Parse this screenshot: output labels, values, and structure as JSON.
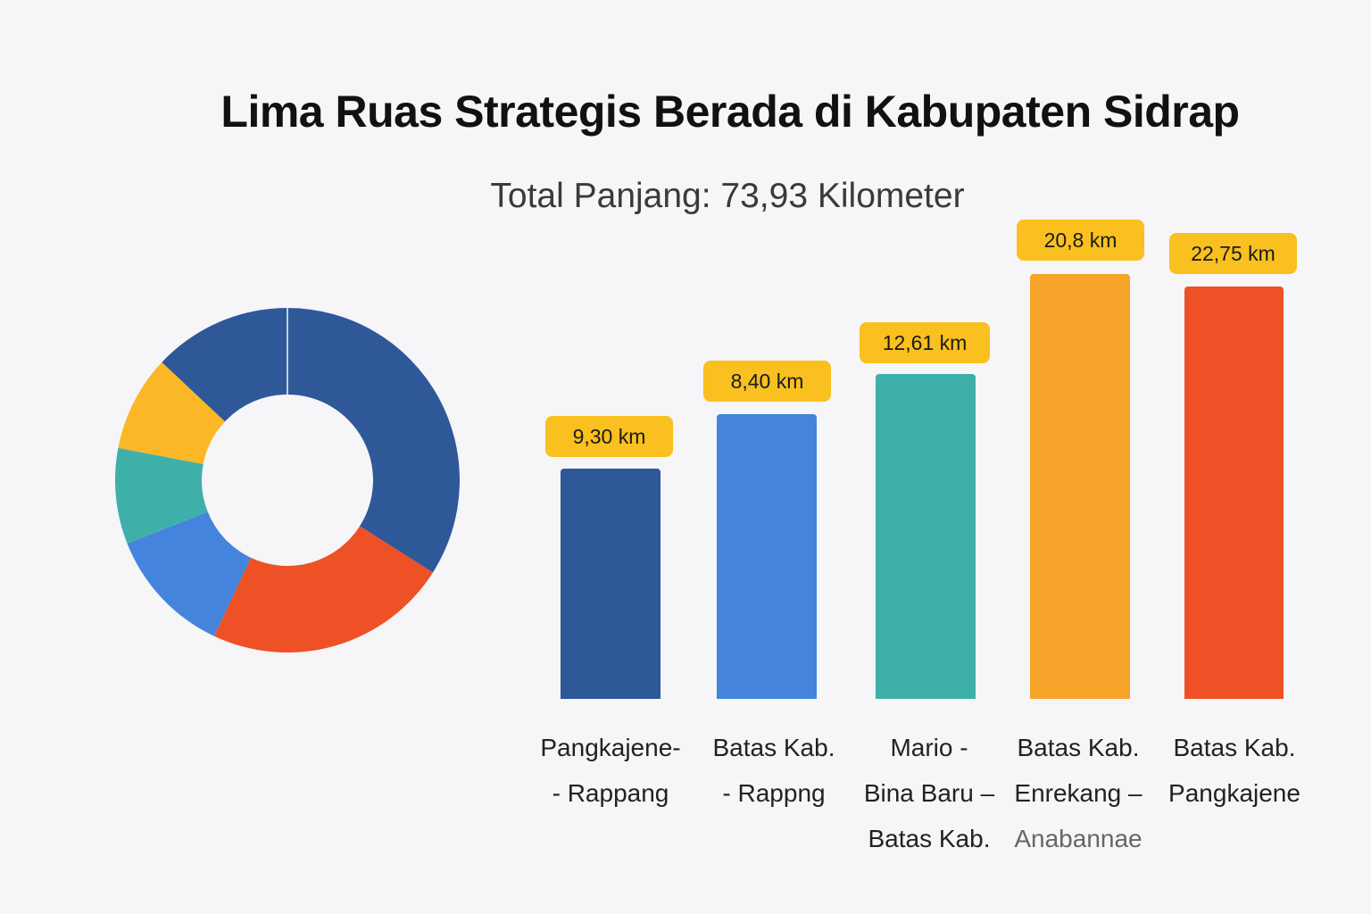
{
  "header": {
    "title": "Lima Ruas Strategis Berada di Kabupaten Sidrap",
    "subtitle": "Total Panjang: 73,93 Kilometer"
  },
  "colors": {
    "dark_blue": "#2f5899",
    "blue": "#4484dc",
    "teal": "#3fb0a9",
    "orange": "#f7a42a",
    "red_orange": "#ee5126",
    "yellow": "#fbb726",
    "badge": "#f9c01f",
    "background": "#f6f5f7"
  },
  "bars": [
    {
      "value_label": "9,30 km",
      "label_lines": [
        "Pangkajene-",
        "- Rappang"
      ],
      "color": "#2f5899"
    },
    {
      "value_label": "8,40 km",
      "label_lines": [
        "Batas Kab.",
        "- Rappng"
      ],
      "color": "#4484dc"
    },
    {
      "value_label": "12,61 km",
      "label_lines": [
        "Mario -",
        "Bina Baru –",
        "Batas Kab."
      ],
      "color": "#3fb0a9"
    },
    {
      "value_label": "20,8 km",
      "label_lines": [
        "Batas Kab.",
        "Enrekang –",
        "Anabannae"
      ],
      "color": "#f7a42a"
    },
    {
      "value_label": "22,75 km",
      "label_lines": [
        "Batas Kab.",
        "Pangkajene"
      ],
      "color": "#ee5126"
    }
  ],
  "chart_data": [
    {
      "type": "pie",
      "subtype": "donut",
      "title": "",
      "labels": [
        "Segment 1 (dark blue)",
        "Segment 2 (orange-red)",
        "Segment 3 (blue)",
        "Segment 4 (teal)",
        "Segment 5 (yellow)",
        "Segment 6 (dark blue)"
      ],
      "values_percent": [
        34,
        23,
        12,
        9,
        9,
        13
      ],
      "colors": [
        "#2f5899",
        "#ee5126",
        "#4484dc",
        "#3fb0a9",
        "#fbb726",
        "#2f5899"
      ],
      "start_angle_deg": 0,
      "direction": "clockwise",
      "legend": "none"
    },
    {
      "type": "bar",
      "title": "Lima Ruas Strategis Berada di Kabupaten Sidrap",
      "subtitle": "Total Panjang: 73,93 Kilometer",
      "categories": [
        "Pangkajene- - Rappang",
        "Batas Kab. - Rappng",
        "Mario - Bina Baru – Batas Kab.",
        "Batas Kab. Enrekang – Anabannae",
        "Batas Kab. Pangkajene"
      ],
      "values": [
        9.3,
        8.4,
        12.61,
        20.8,
        22.75
      ],
      "data_labels": [
        "9,30 km",
        "8,40 km",
        "12,61 km",
        "20,8 km",
        "22,75 km"
      ],
      "unit": "km",
      "xlabel": "",
      "ylabel": "",
      "grid": false,
      "y_axis_visible": false,
      "colors": [
        "#2f5899",
        "#4484dc",
        "#3fb0a9",
        "#f7a42a",
        "#ee5126"
      ]
    }
  ]
}
